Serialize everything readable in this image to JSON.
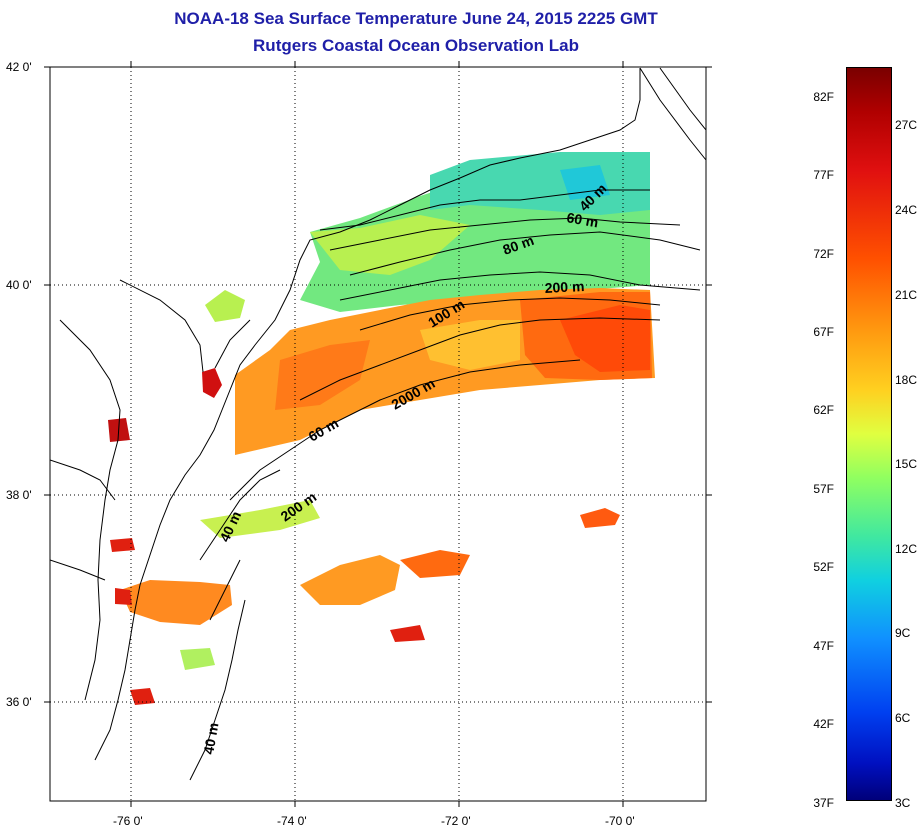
{
  "title_line1": "NOAA-18 Sea Surface Temperature June 24, 2015 2225 GMT",
  "title_line2": "Rutgers Coastal Ocean Observation Lab",
  "lat_labels": [
    "42 0'",
    "40 0'",
    "38 0'",
    "36 0'"
  ],
  "lon_labels": [
    "-76 0'",
    "-74 0'",
    "-72 0'",
    "-70 0'"
  ],
  "contours": [
    "40 m",
    "60 m",
    "80 m",
    "200 m",
    "100 m",
    "2000 m",
    "60 m",
    "200 m",
    "40 m",
    "40 m"
  ],
  "colorbar": {
    "fahrenheit": [
      "82F",
      "77F",
      "72F",
      "67F",
      "62F",
      "57F",
      "52F",
      "47F",
      "42F",
      "37F"
    ],
    "celsius": [
      "27C",
      "24C",
      "21C",
      "18C",
      "15C",
      "12C",
      "9C",
      "6C",
      "3C"
    ]
  },
  "colors": {
    "title": "#1f1fa8"
  }
}
